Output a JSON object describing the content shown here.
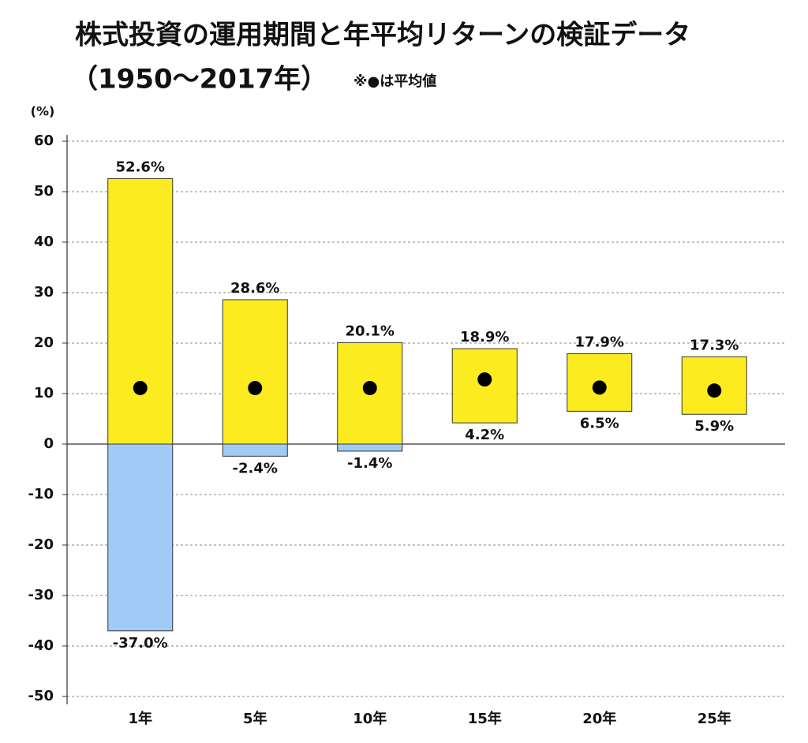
{
  "chart_data": {
    "type": "range_bar",
    "title": "株式投資の運用期間と年平均リターンの検証データ",
    "subtitle": "（1950〜2017年）",
    "note": "※●は平均値",
    "y_label": "(%)",
    "categories": [
      "1年",
      "5年",
      "10年",
      "15年",
      "20年",
      "25年"
    ],
    "high": {
      "values": [
        52.6,
        28.6,
        20.1,
        18.9,
        17.9,
        17.3
      ],
      "value_labels": [
        "52.6%",
        "28.6%",
        "20.1%",
        "18.9%",
        "17.9%",
        "17.3%"
      ]
    },
    "low": {
      "values": [
        -37.0,
        -2.4,
        -1.4,
        4.2,
        6.5,
        5.9
      ],
      "value_labels": [
        "-37.0%",
        "-2.4%",
        "-1.4%",
        "4.2%",
        "6.5%",
        "5.9%"
      ]
    },
    "average": {
      "values": [
        11.1,
        11.1,
        11.1,
        12.8,
        11.2,
        10.6
      ],
      "color": "#000000"
    },
    "positive_color": "#fcec1f",
    "negative_color": "#a0cbf7",
    "ylim": [
      -50,
      60
    ],
    "yticks": [
      -50,
      -40,
      -30,
      -20,
      -10,
      0,
      10,
      20,
      30,
      40,
      50,
      60
    ],
    "grid": true
  }
}
